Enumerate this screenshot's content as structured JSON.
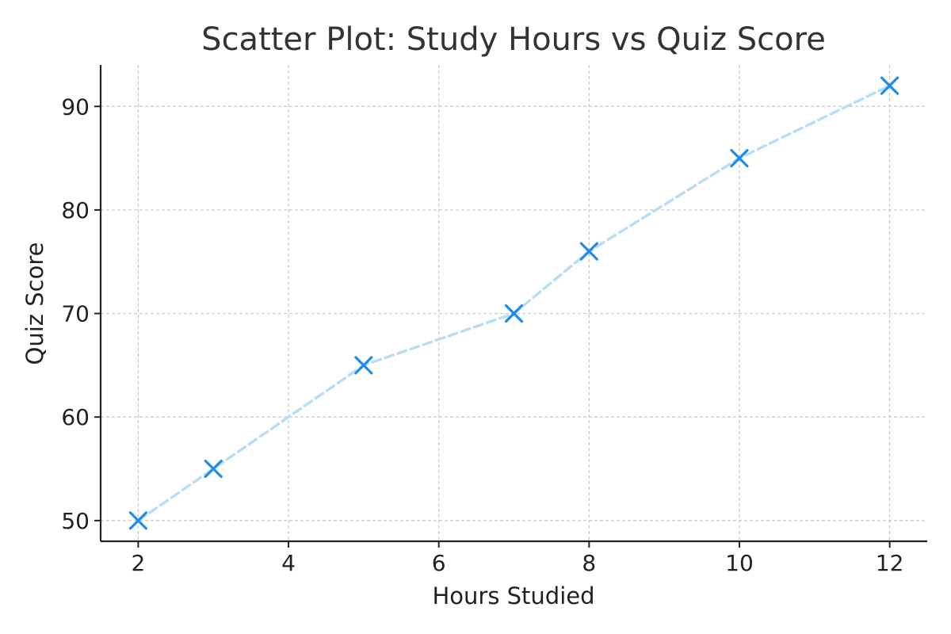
{
  "chart_data": {
    "type": "scatter",
    "title": "Scatter Plot: Study Hours vs Quiz Score",
    "xlabel": "Hours Studied",
    "ylabel": "Quiz Score",
    "xlim": [
      1.5,
      12.5
    ],
    "ylim": [
      48,
      94
    ],
    "xticks": [
      2,
      4,
      6,
      8,
      10,
      12
    ],
    "yticks": [
      50,
      60,
      70,
      80,
      90
    ],
    "grid": true,
    "series": [
      {
        "x": [
          2,
          3,
          5,
          7,
          8,
          10,
          12
        ],
        "y": [
          50,
          55,
          65,
          70,
          76,
          85,
          92
        ],
        "marker": "x",
        "connecting_line": "dashed",
        "marker_color": "#1f8ce6",
        "line_color": "#b7def5"
      }
    ]
  }
}
